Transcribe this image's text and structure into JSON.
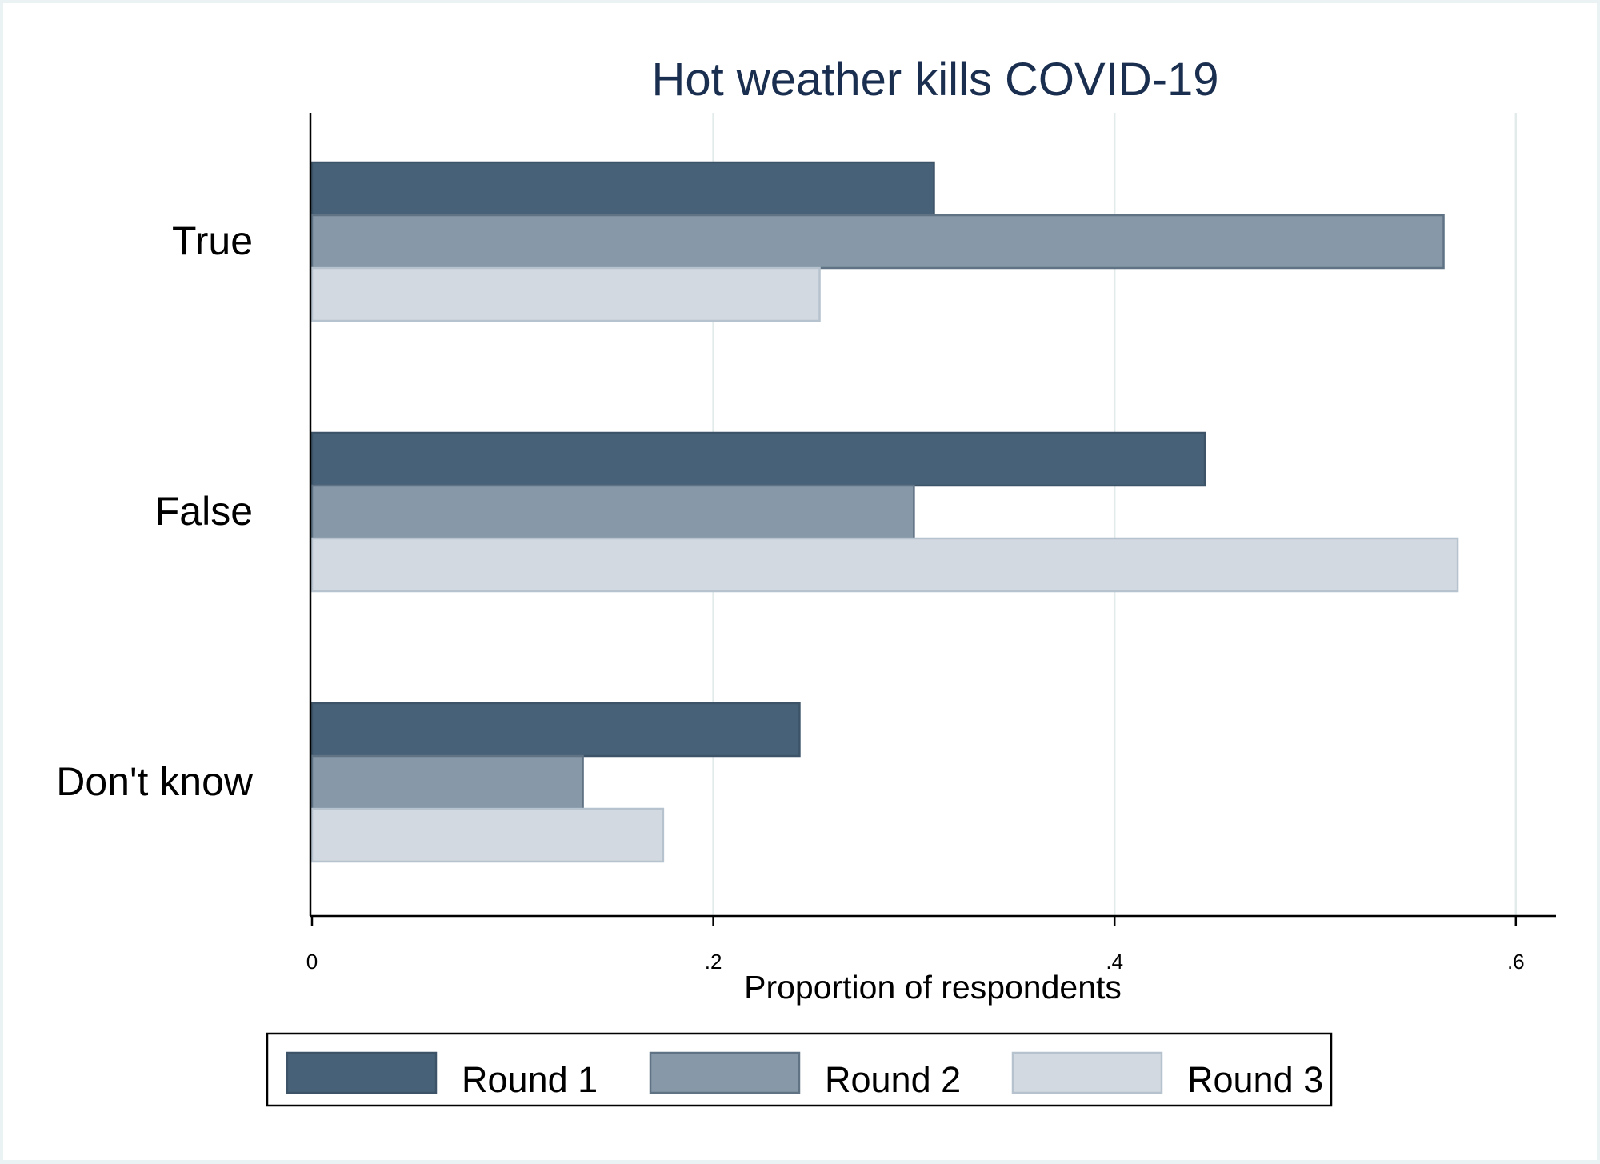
{
  "chart_data": {
    "type": "bar",
    "orientation": "horizontal",
    "title": "Hot weather kills COVID-19",
    "xlabel": "Proportion of respondents",
    "ylabel": "",
    "categories": [
      "True",
      "False",
      "Don't know"
    ],
    "series": [
      {
        "name": "Round 1",
        "values": [
          0.31,
          0.445,
          0.243
        ],
        "color": "#476178"
      },
      {
        "name": "Round 2",
        "values": [
          0.564,
          0.3,
          0.135
        ],
        "color": "#8799a8"
      },
      {
        "name": "Round 3",
        "values": [
          0.253,
          0.571,
          0.175
        ],
        "color": "#d3d9e0"
      }
    ],
    "xlim": [
      0,
      0.62
    ],
    "xticks": [
      {
        "value": 0,
        "label": "0"
      },
      {
        "value": 0.2,
        "label": ".2"
      },
      {
        "value": 0.4,
        "label": ".4"
      },
      {
        "value": 0.6,
        "label": ".6"
      }
    ],
    "grid": true,
    "legend_position": "bottom",
    "colors": {
      "title": "#1a2e4f",
      "gridline": "#e2eaea",
      "bar_outline_r1": "#3d5468",
      "bar_outline_r2": "#5f7385",
      "bar_outline_r3": "#b6c2cd"
    }
  }
}
